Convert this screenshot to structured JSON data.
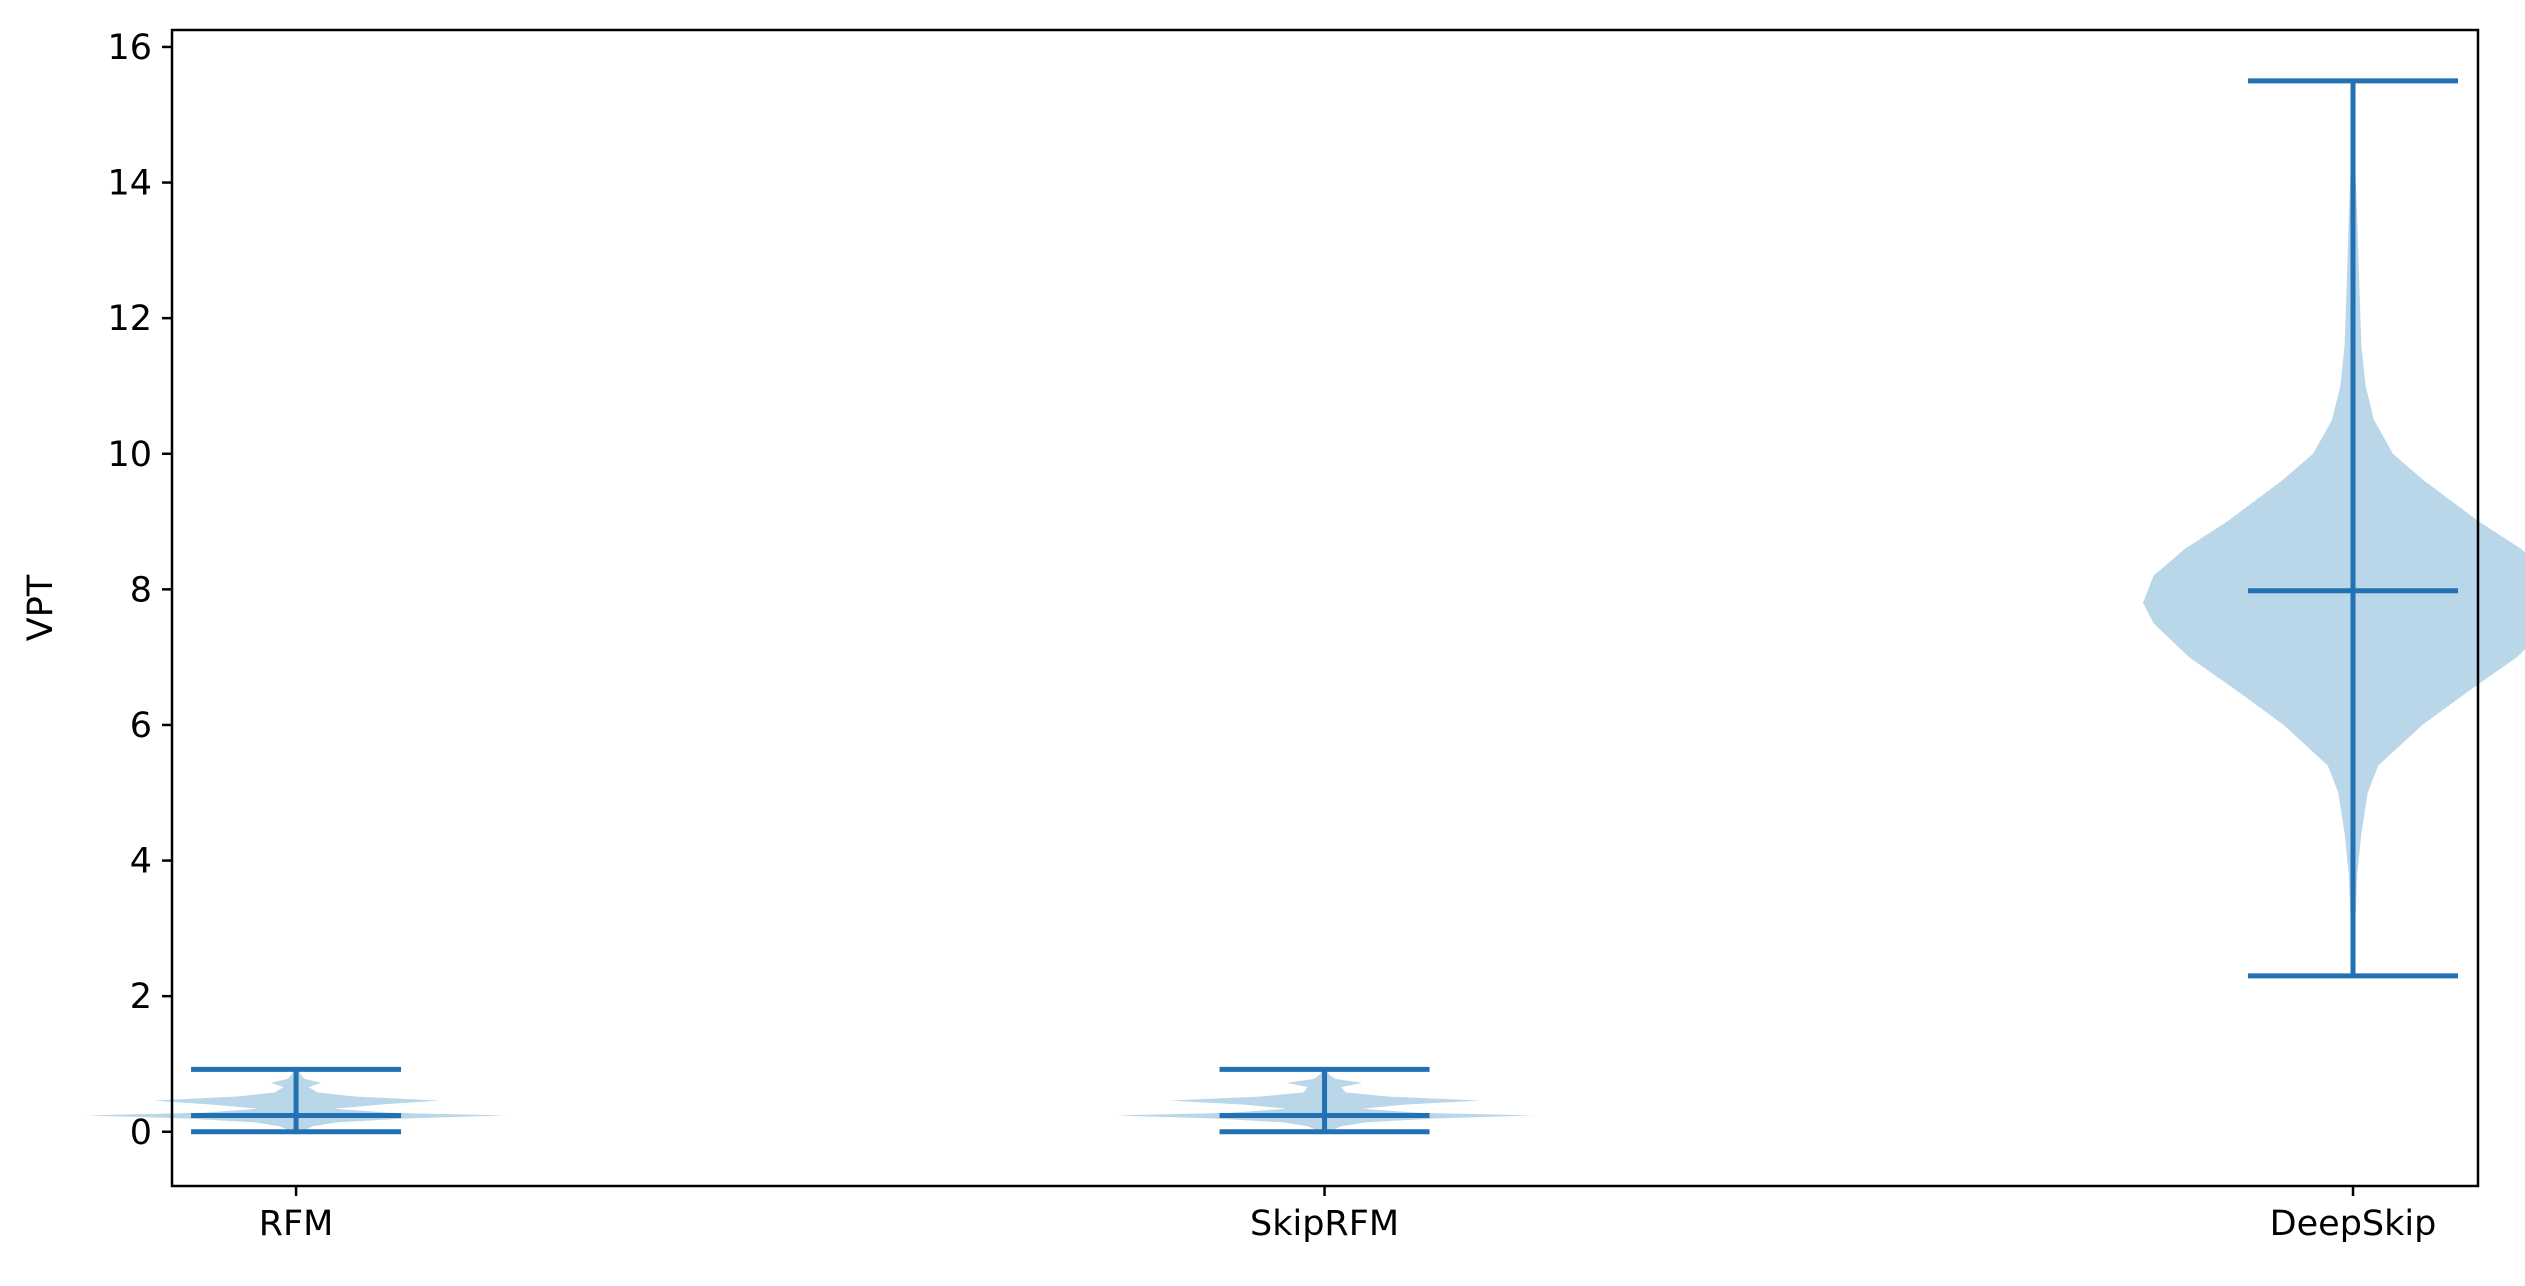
{
  "chart_data": {
    "type": "violin",
    "title": "",
    "xlabel": "",
    "ylabel": "VPT",
    "ylim": [
      -0.8,
      16.25
    ],
    "yticks": [
      0,
      2,
      4,
      6,
      8,
      10,
      12,
      14,
      16
    ],
    "ytick_labels": [
      "0",
      "2",
      "4",
      "6",
      "8",
      "10",
      "12",
      "14",
      "16"
    ],
    "grid": false,
    "colors": {
      "body": "#bad6e9",
      "lines": "#2271b2",
      "axis": "#000000"
    },
    "categories": [
      "RFM",
      "SkipRFM",
      "DeepSkip"
    ],
    "violins": [
      {
        "name": "RFM",
        "min": 0.0,
        "median": 0.24,
        "max": 0.92,
        "profile": [
          [
            0.0,
            0.02
          ],
          [
            0.08,
            0.08
          ],
          [
            0.14,
            0.2
          ],
          [
            0.2,
            0.55
          ],
          [
            0.24,
            1.0
          ],
          [
            0.28,
            0.45
          ],
          [
            0.34,
            0.18
          ],
          [
            0.4,
            0.4
          ],
          [
            0.46,
            0.68
          ],
          [
            0.52,
            0.28
          ],
          [
            0.58,
            0.1
          ],
          [
            0.66,
            0.06
          ],
          [
            0.72,
            0.12
          ],
          [
            0.78,
            0.04
          ],
          [
            0.85,
            0.02
          ],
          [
            0.92,
            0.01
          ]
        ]
      },
      {
        "name": "SkipRFM",
        "min": 0.0,
        "median": 0.24,
        "max": 0.92,
        "profile": [
          [
            0.0,
            0.02
          ],
          [
            0.08,
            0.08
          ],
          [
            0.14,
            0.2
          ],
          [
            0.2,
            0.55
          ],
          [
            0.24,
            1.0
          ],
          [
            0.28,
            0.45
          ],
          [
            0.34,
            0.18
          ],
          [
            0.4,
            0.38
          ],
          [
            0.46,
            0.74
          ],
          [
            0.52,
            0.3
          ],
          [
            0.58,
            0.1
          ],
          [
            0.66,
            0.08
          ],
          [
            0.72,
            0.18
          ],
          [
            0.78,
            0.05
          ],
          [
            0.85,
            0.02
          ],
          [
            0.92,
            0.01
          ]
        ]
      },
      {
        "name": "DeepSkip",
        "min": 2.3,
        "median": 7.98,
        "max": 15.5,
        "profile": [
          [
            2.3,
            0.003
          ],
          [
            3.0,
            0.01
          ],
          [
            3.8,
            0.02
          ],
          [
            4.4,
            0.04
          ],
          [
            5.0,
            0.07
          ],
          [
            5.4,
            0.12
          ],
          [
            6.0,
            0.33
          ],
          [
            6.5,
            0.55
          ],
          [
            7.0,
            0.78
          ],
          [
            7.5,
            0.95
          ],
          [
            7.8,
            1.0
          ],
          [
            8.2,
            0.95
          ],
          [
            8.6,
            0.8
          ],
          [
            9.0,
            0.6
          ],
          [
            9.6,
            0.34
          ],
          [
            10.0,
            0.19
          ],
          [
            10.5,
            0.1
          ],
          [
            11.0,
            0.06
          ],
          [
            11.6,
            0.04
          ],
          [
            12.5,
            0.03
          ],
          [
            13.5,
            0.02
          ],
          [
            14.3,
            0.01
          ],
          [
            15.0,
            0.003
          ],
          [
            15.5,
            0.001
          ]
        ]
      }
    ]
  }
}
